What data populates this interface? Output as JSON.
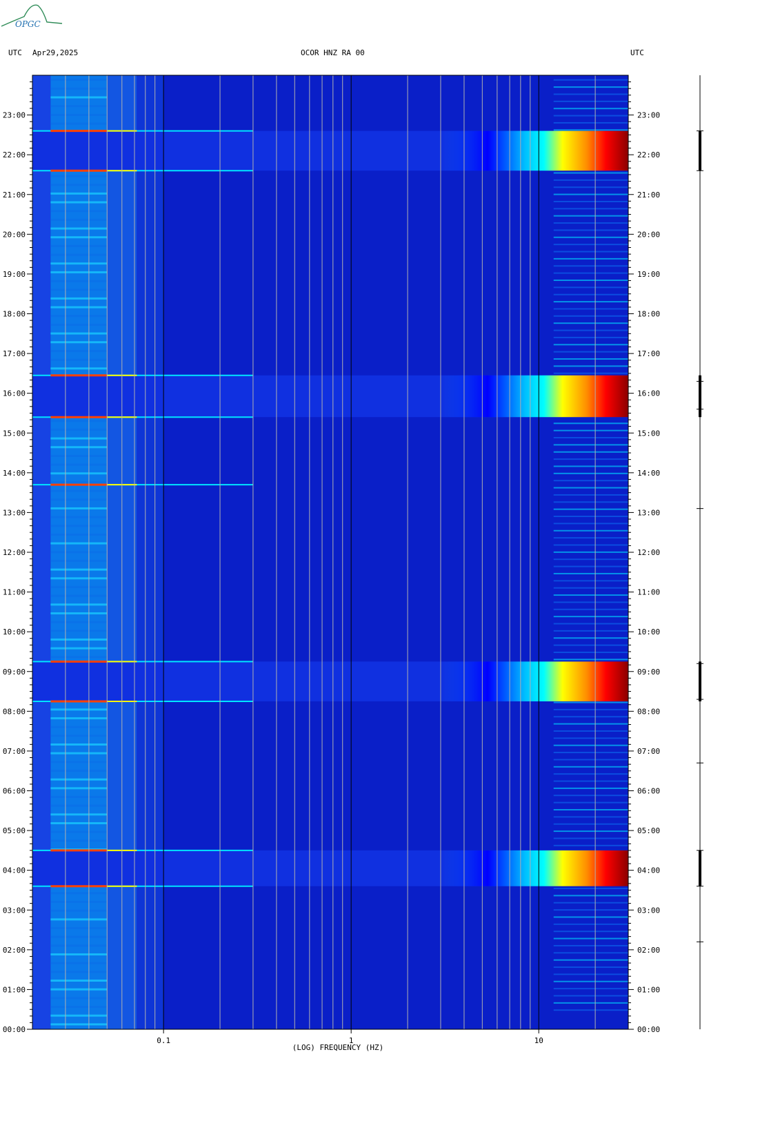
{
  "header": {
    "left_utc": "UTC",
    "date": "Apr29,2025",
    "station": "OCOR HNZ RA 00",
    "right_utc": "UTC"
  },
  "logo": {
    "text": "OPGC",
    "color": "#2e8b57"
  },
  "chart_data": {
    "type": "heatmap",
    "xlabel": "(LOG) FREQUENCY (HZ)",
    "x_scale": "log",
    "xlim": [
      0.02,
      30
    ],
    "x_ticks": [
      0.1,
      1,
      10
    ],
    "x_tick_labels": [
      "0.1",
      "1",
      "10"
    ],
    "ylabel_left": "UTC",
    "ylabel_right": "UTC",
    "ylim_hours": [
      0,
      24
    ],
    "y_ticks": [
      "00:00",
      "01:00",
      "02:00",
      "03:00",
      "04:00",
      "05:00",
      "06:00",
      "07:00",
      "08:00",
      "09:00",
      "10:00",
      "11:00",
      "12:00",
      "13:00",
      "14:00",
      "15:00",
      "16:00",
      "17:00",
      "18:00",
      "19:00",
      "20:00",
      "21:00",
      "22:00",
      "23:00"
    ],
    "colormap": [
      "#00008b",
      "#0000ff",
      "#00bfff",
      "#00ffff",
      "#ffff00",
      "#ff8c00",
      "#ff0000",
      "#8b0000"
    ],
    "background_color": "#0a1fc8",
    "high_energy_bands_hours": [
      [
        3.6,
        4.5
      ],
      [
        8.25,
        9.25
      ],
      [
        15.4,
        16.45
      ],
      [
        21.6,
        22.6
      ]
    ],
    "event_lines_hours": [
      3.6,
      4.5,
      8.25,
      9.25,
      13.7,
      15.4,
      16.45,
      21.6,
      22.6
    ],
    "side_trace_spikes_hours": [
      2.2,
      3.6,
      4.5,
      6.7,
      8.3,
      9.2,
      13.1,
      15.6,
      16.3,
      21.6,
      22.6
    ]
  }
}
